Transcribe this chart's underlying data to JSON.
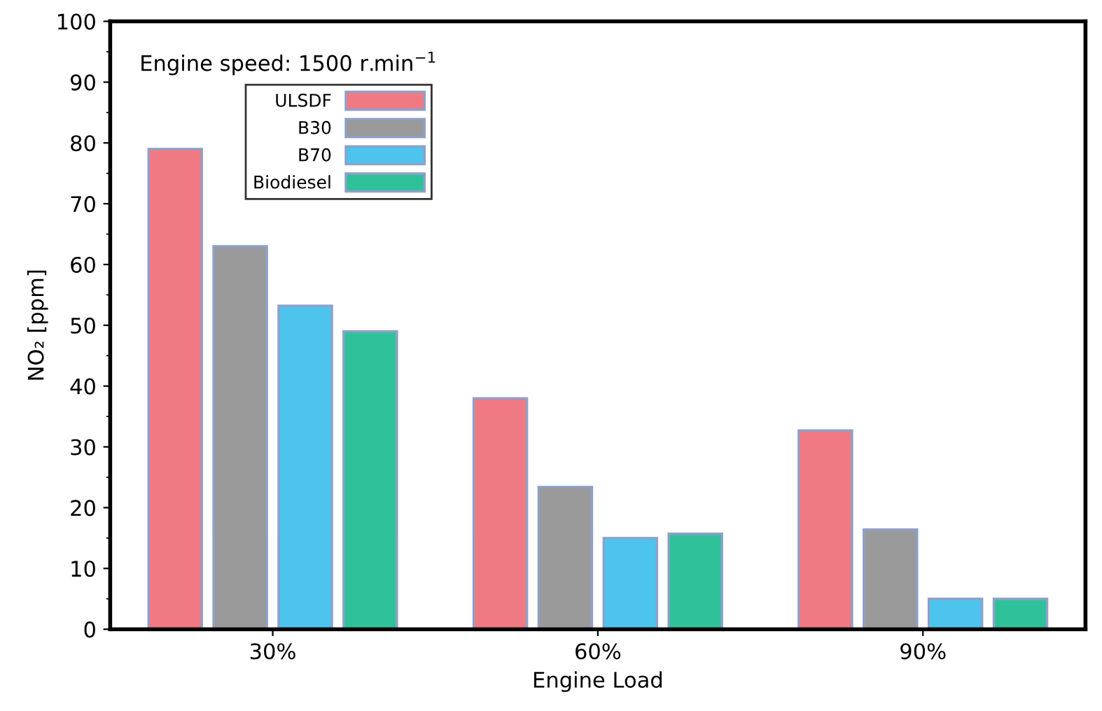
{
  "chart_data": {
    "type": "bar",
    "xlabel": "Engine Load",
    "ylabel": "NO₂ [ppm]",
    "categories": [
      "30%",
      "60%",
      "90%"
    ],
    "series": [
      {
        "name": "ULSDF",
        "color": "#f07a84",
        "values": [
          79,
          38,
          32.7
        ]
      },
      {
        "name": "B30",
        "color": "#9a9a9a",
        "values": [
          63,
          23.4,
          16.4
        ]
      },
      {
        "name": "B70",
        "color": "#4cc4ee",
        "values": [
          53.2,
          15,
          5
        ]
      },
      {
        "name": "Biodiesel",
        "color": "#2fc29a",
        "values": [
          49,
          15.7,
          5
        ]
      }
    ],
    "ylim": [
      0,
      100
    ],
    "yticks": [
      0,
      10,
      20,
      30,
      40,
      50,
      60,
      70,
      80,
      90,
      100
    ],
    "grid": false,
    "legend": "top left",
    "annotations": [
      "Engine speed: 1500 r.min$^{−1}$"
    ]
  }
}
